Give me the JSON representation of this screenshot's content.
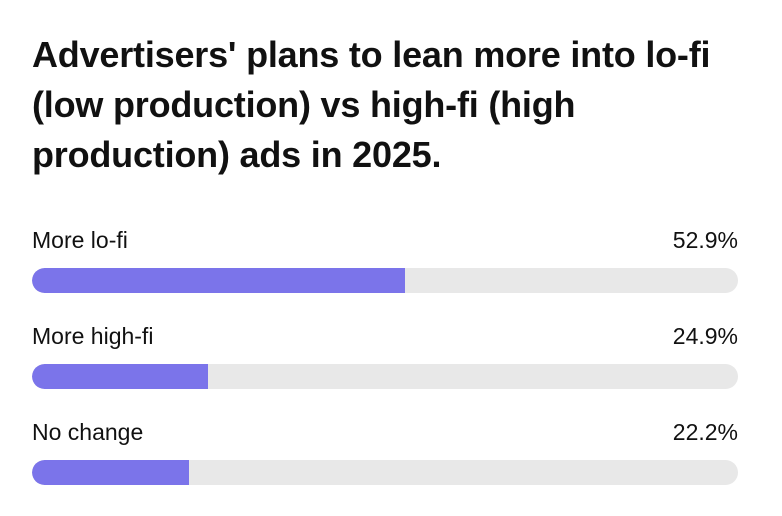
{
  "chart_data": {
    "type": "bar",
    "orientation": "horizontal",
    "title": "Advertisers' plans to lean more into lo-fi (low production) vs high-fi (high production) ads in 2025.",
    "categories": [
      "More lo-fi",
      "More high-fi",
      "No change"
    ],
    "values": [
      52.9,
      24.9,
      22.2
    ],
    "value_labels": [
      "52.9%",
      "24.9%",
      "22.2%"
    ],
    "unit": "%",
    "xlim": [
      0,
      100
    ],
    "bar_color": "#7b74ea",
    "track_color": "#e8e8e8",
    "grid": false,
    "legend": "none"
  }
}
